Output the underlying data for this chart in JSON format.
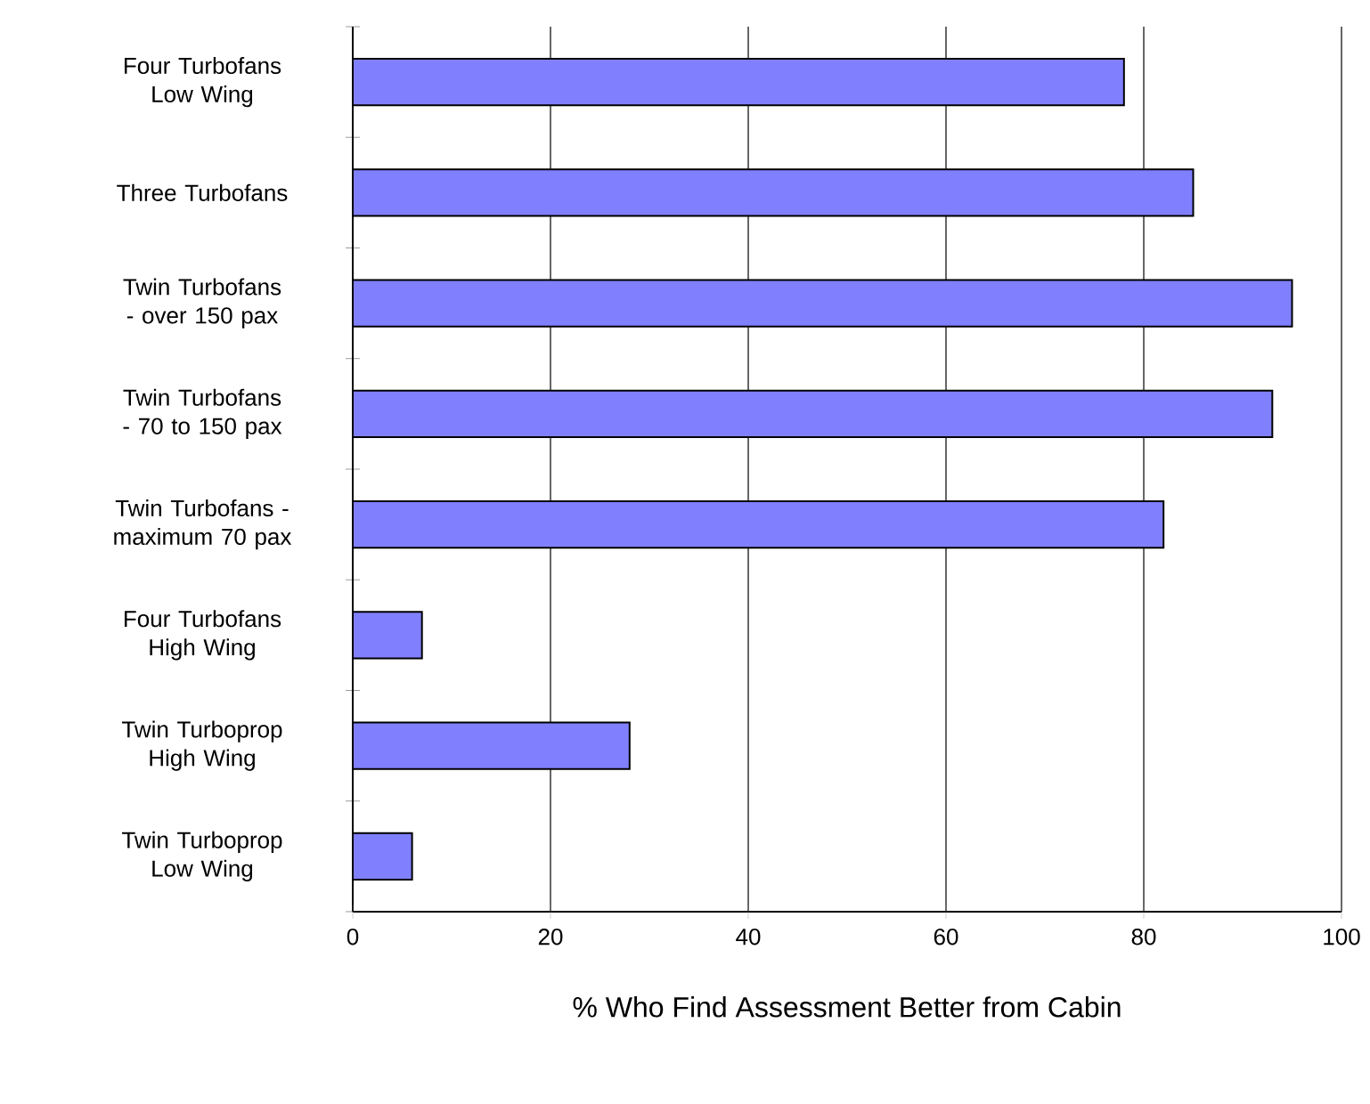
{
  "chart_data": {
    "type": "bar",
    "orientation": "horizontal",
    "categories": [
      "Four Turbofans Low Wing",
      "Three Turbofans",
      "Twin Turbofans - over 150 pax",
      "Twin Turbofans - 70 to 150 pax",
      "Twin Turbofans - maximum 70 pax",
      "Four Turbofans High Wing",
      "Twin Turboprop High Wing",
      "Twin Turboprop Low Wing"
    ],
    "values": [
      78,
      85,
      95,
      93,
      82,
      7,
      28,
      6
    ],
    "color": "#8080ff",
    "xlim": [
      0,
      100
    ],
    "xticks": [
      0,
      20,
      40,
      60,
      80,
      100
    ],
    "xlabel": "% Who Find Assessment Better from Cabin",
    "grid": "x"
  }
}
